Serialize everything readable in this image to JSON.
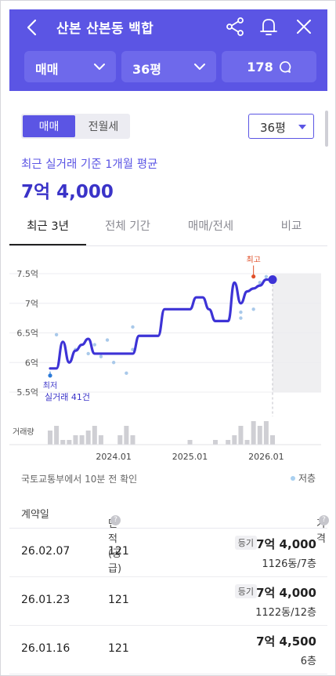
{
  "header": {
    "title": "산본 산본동 백합",
    "deal_type": "매매",
    "area": "36평",
    "comment_count": "178"
  },
  "filters": {
    "segment": [
      "매매",
      "전월세"
    ],
    "active_segment": "매매",
    "area_select": "36평"
  },
  "summary": {
    "label": "최근 실거래 기준 1개월 평균",
    "price": "7억 4,000"
  },
  "tabs": [
    "최근 3년",
    "전체 기간",
    "매매/전세",
    "비교"
  ],
  "chart_data": {
    "type": "line",
    "x_ticks": [
      "2024.01",
      "2025.01",
      "2026.01"
    ],
    "y_ticks": [
      "7.5억",
      "7억",
      "6.5억",
      "6억",
      "5.5억"
    ],
    "ylim": [
      5.5,
      7.5
    ],
    "high_label": "최고",
    "low_label": "최저",
    "count_label": "실거래 41건",
    "volume_label": "거래량",
    "series": [
      {
        "x": [
          "2023.03",
          "2023.04",
          "2023.05",
          "2023.06",
          "2023.07",
          "2023.08",
          "2023.09",
          "2023.10",
          "2023.11",
          "2023.12",
          "2024.01",
          "2024.02",
          "2024.03",
          "2024.04",
          "2024.05",
          "2024.06",
          "2024.07",
          "2024.08",
          "2024.09",
          "2024.10",
          "2024.11",
          "2024.12",
          "2025.01",
          "2025.02",
          "2025.03",
          "2025.04",
          "2025.05",
          "2025.06",
          "2025.07",
          "2025.08",
          "2025.09",
          "2025.10",
          "2025.11",
          "2025.12",
          "2026.01",
          "2026.02"
        ],
        "values": [
          5.9,
          5.9,
          6.35,
          6.0,
          6.2,
          6.3,
          6.4,
          6.15,
          6.15,
          6.15,
          6.15,
          6.15,
          6.15,
          6.15,
          6.45,
          6.45,
          6.45,
          6.45,
          6.9,
          6.9,
          6.9,
          6.9,
          6.9,
          7.1,
          7.1,
          6.9,
          6.7,
          6.7,
          6.7,
          7.35,
          7.0,
          7.2,
          7.25,
          7.3,
          7.4,
          7.4
        ]
      }
    ],
    "scatter": [
      {
        "x": "2023.03",
        "y": 5.78
      },
      {
        "x": "2023.04",
        "y": 6.47
      },
      {
        "x": "2023.07",
        "y": 6.22
      },
      {
        "x": "2023.09",
        "y": 6.15
      },
      {
        "x": "2023.10",
        "y": 6.3
      },
      {
        "x": "2023.11",
        "y": 6.1
      },
      {
        "x": "2023.12",
        "y": 6.38
      },
      {
        "x": "2024.01",
        "y": 6.0
      },
      {
        "x": "2024.03",
        "y": 5.82
      },
      {
        "x": "2024.04",
        "y": 6.6
      },
      {
        "x": "2024.04",
        "y": 6.22
      },
      {
        "x": "2025.09",
        "y": 6.85
      },
      {
        "x": "2025.09",
        "y": 6.75
      },
      {
        "x": "2025.11",
        "y": 6.9
      },
      {
        "x": "2025.12",
        "y": 7.35
      },
      {
        "x": "2026.01",
        "y": 7.45
      }
    ],
    "volume": [
      3,
      4,
      1,
      1,
      2,
      2,
      3,
      4,
      2,
      0,
      0,
      2,
      4,
      2,
      0,
      0,
      0,
      0,
      0,
      0,
      0,
      0,
      1,
      0,
      0,
      0,
      1,
      0,
      1,
      2,
      4,
      1,
      5,
      4,
      5,
      2
    ]
  },
  "source_note": "국토교통부에서 10분 전 확인",
  "legend_label": "저층",
  "table": {
    "headers": [
      "계약일",
      "면적(공급)",
      "가격"
    ],
    "rows": [
      {
        "date": "26.02.07",
        "area": "121",
        "badge": "등기",
        "price": "7억 4,000",
        "detail": "1126동/7층"
      },
      {
        "date": "26.01.23",
        "area": "121",
        "badge": "등기",
        "price": "7억 4,000",
        "detail": "1122동/12층"
      },
      {
        "date": "26.01.16",
        "area": "121",
        "badge": "",
        "price": "7억 4,500",
        "detail": "6층"
      }
    ]
  },
  "colors": {
    "accent": "#5b55e4",
    "line": "#3d33d6",
    "scatter": "#a9c9ea",
    "high": "#e0502a"
  }
}
